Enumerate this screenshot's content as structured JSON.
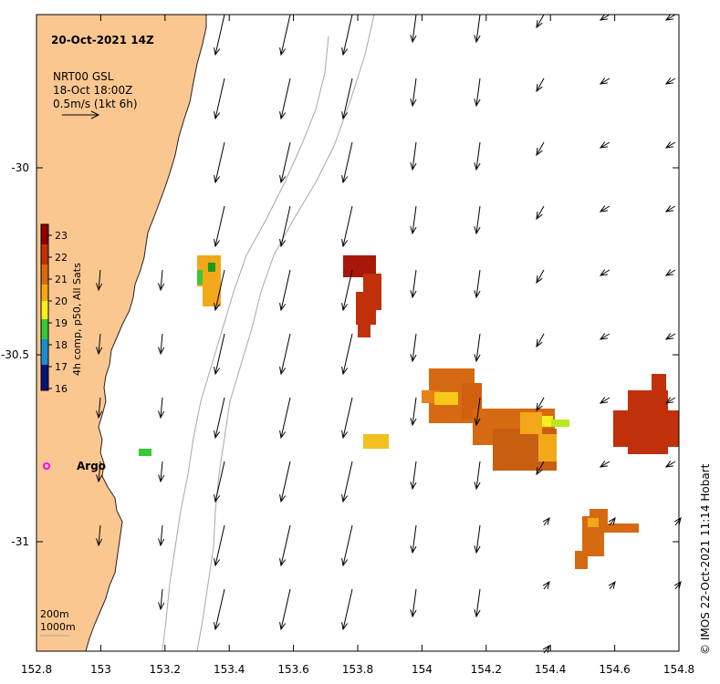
{
  "title": "20-Oct-2021 14Z",
  "legend": {
    "line1": "NRT00 GSL",
    "line2": "18-Oct 18:00Z",
    "line3": "0.5m/s (1kt 6h)"
  },
  "colorbar": {
    "label": "4h comp, p50, All Sats",
    "ticks": [
      "23",
      "22",
      "21",
      "20",
      "19",
      "18",
      "17",
      "16"
    ],
    "stops": [
      "#8b0000",
      "#c0300a",
      "#d66a12",
      "#f2a818",
      "#f6f020",
      "#38c838",
      "#1e8cd0",
      "#08127a"
    ]
  },
  "argo": {
    "label": "Argo",
    "color": "#ff00ff"
  },
  "isobaths": {
    "line1": "200m",
    "line2": "1000m"
  },
  "credit": "© IMOS 22-Oct-2021 11:14 Hobart",
  "axes": {
    "x_ticks": [
      "152.8",
      "153",
      "153.2",
      "153.4",
      "153.6",
      "153.8",
      "154",
      "154.2",
      "154.4",
      "154.6",
      "154.8"
    ],
    "y_ticks": [
      "-30",
      "-30.5",
      "-31"
    ]
  },
  "colors": {
    "land": "#fbc791",
    "coastline": "#222222",
    "isobath": "#a8a8a8"
  }
}
